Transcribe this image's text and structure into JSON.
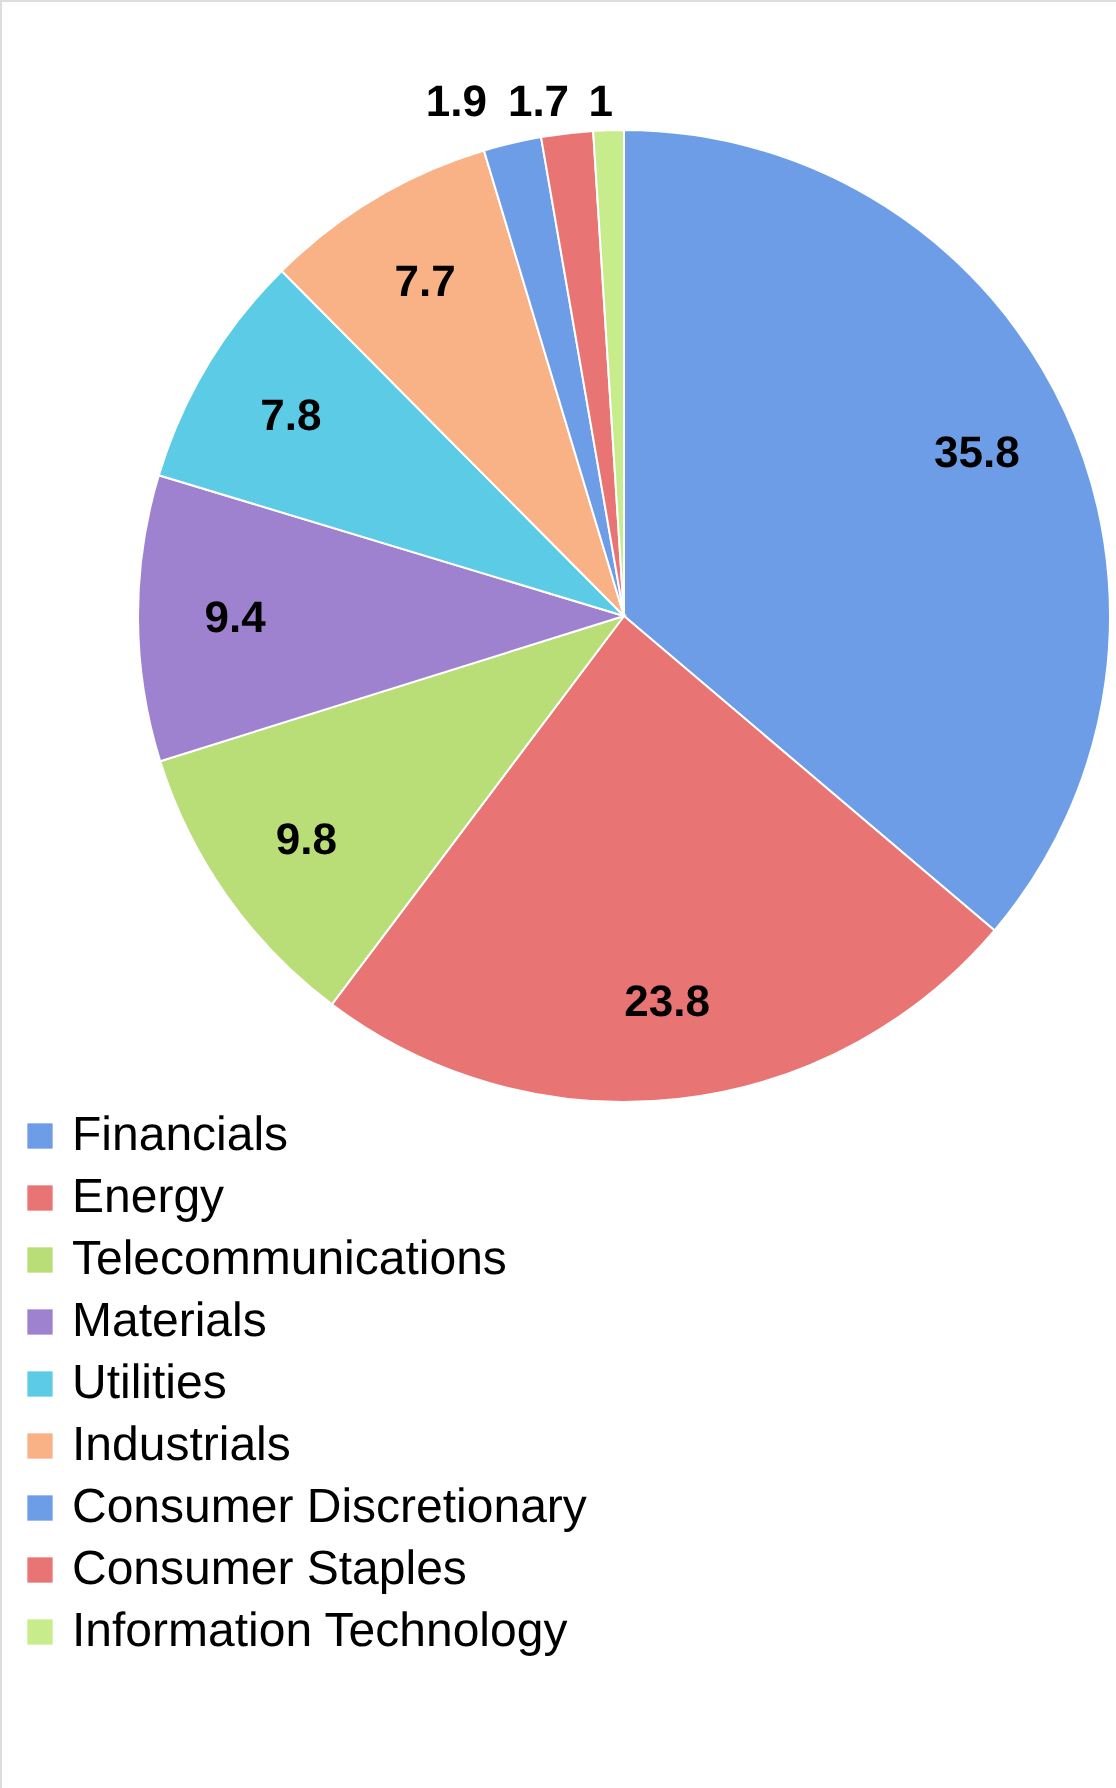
{
  "chart_data": {
    "type": "pie",
    "categories": [
      "Financials",
      "Energy",
      "Telecommunications",
      "Materials",
      "Utilities",
      "Industrials",
      "Consumer Discretionary",
      "Consumer Staples",
      "Information Technology"
    ],
    "values": [
      35.8,
      23.8,
      9.8,
      9.4,
      7.8,
      7.7,
      1.9,
      1.7,
      1
    ],
    "colors": [
      "#6c9de6",
      "#e87474",
      "#b9de78",
      "#9f82cf",
      "#5ccbe6",
      "#f8b285",
      "#6c9de6",
      "#e87474",
      "#c6ec8c"
    ],
    "data_labels": true,
    "legend": "bottom"
  }
}
